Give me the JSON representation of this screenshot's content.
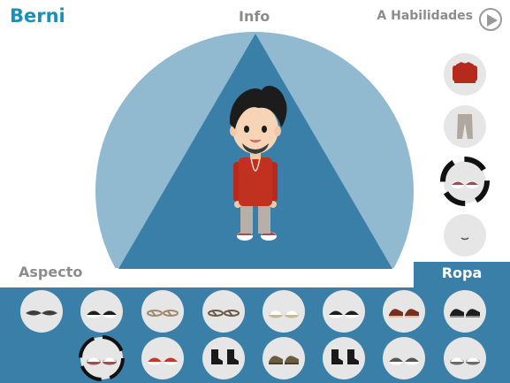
{
  "header": {
    "character_name": "Berni",
    "info_title": "Info",
    "next_label": "A Habilidades"
  },
  "tabs": {
    "aspecto": "Aspecto",
    "ropa": "Ropa"
  },
  "colors": {
    "accent": "#1a90b8",
    "tray": "#3a7fa8",
    "stage_light": "#91b9d0",
    "stage_dark": "#3a7fa8",
    "option_bg": "#e6e6e6"
  },
  "side_categories": [
    {
      "id": "shirt",
      "icon": "shirt-icon",
      "selected": false
    },
    {
      "id": "pants",
      "icon": "pants-icon",
      "selected": false
    },
    {
      "id": "shoes",
      "icon": "shoes-icon",
      "selected": true
    },
    {
      "id": "accessory",
      "icon": "accessory-icon",
      "selected": false
    }
  ],
  "shoe_options": [
    {
      "icon": "slipper-icon",
      "colors": [
        "#3d3d3d",
        "#2a2a2a"
      ],
      "selected": false
    },
    {
      "icon": "sneaker-icon",
      "colors": [
        "#1e1e1e",
        "#ffffff"
      ],
      "selected": false
    },
    {
      "icon": "sandal-icon",
      "colors": [
        "#a0896a",
        "#e6e6e6"
      ],
      "selected": false
    },
    {
      "icon": "sandal-icon",
      "colors": [
        "#6b5a45",
        "#e6e6e6"
      ],
      "selected": false
    },
    {
      "icon": "sneaker-icon",
      "colors": [
        "#ffffff",
        "#c9b890"
      ],
      "selected": false
    },
    {
      "icon": "sneaker-icon",
      "colors": [
        "#1e1e1e",
        "#ffffff"
      ],
      "selected": false
    },
    {
      "icon": "shoe-icon",
      "colors": [
        "#7a2e1c",
        "#d9c2a5"
      ],
      "selected": false
    },
    {
      "icon": "shoe-icon",
      "colors": [
        "#1e1e1e",
        "#8c8c8c"
      ],
      "selected": false
    },
    {
      "icon": "sneaker-icon",
      "colors": [
        "#ffffff",
        "#9a4f55"
      ],
      "selected": true
    },
    {
      "icon": "sneaker-icon",
      "colors": [
        "#c0392b",
        "#ffffff"
      ],
      "selected": false
    },
    {
      "icon": "boot-icon",
      "colors": [
        "#1a1a1a",
        "#333333"
      ],
      "selected": false
    },
    {
      "icon": "shoe-icon",
      "colors": [
        "#6b5d3f",
        "#4a3f28"
      ],
      "selected": false
    },
    {
      "icon": "boot-icon",
      "colors": [
        "#1a1a1a",
        "#444444"
      ],
      "selected": false
    },
    {
      "icon": "sneaker-icon",
      "colors": [
        "#555555",
        "#ffffff"
      ],
      "selected": false
    },
    {
      "icon": "sneaker-icon",
      "colors": [
        "#ffffff",
        "#6a6a6a"
      ],
      "selected": false
    }
  ]
}
